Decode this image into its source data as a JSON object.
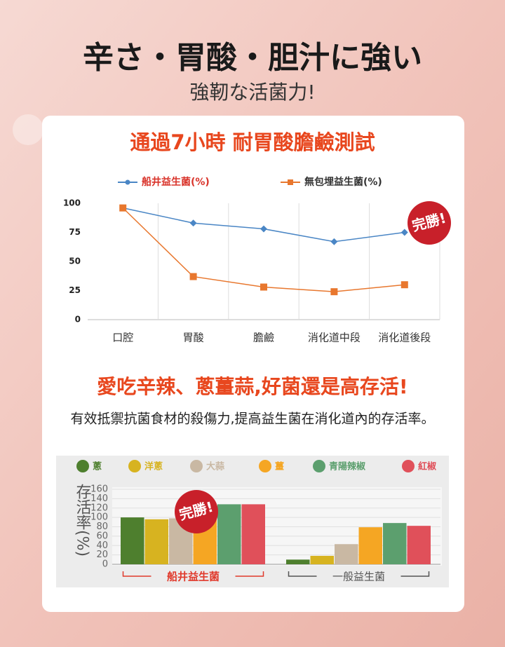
{
  "header": {
    "title": "辛さ・胃酸・胆汁に強い",
    "subtitle": "強靭な活菌力!"
  },
  "chart_data": [
    {
      "type": "line",
      "title": "通過7小時 耐胃酸膽鹼測試",
      "categories": [
        "口腔",
        "胃酸",
        "膽鹼",
        "消化道中段",
        "消化道後段"
      ],
      "series": [
        {
          "name": "船井益生菌(%)",
          "color": "#4a86c5",
          "values": [
            96,
            83,
            78,
            67,
            75
          ]
        },
        {
          "name": "無包埋益生菌(%)",
          "color": "#e8772e",
          "values": [
            96,
            37,
            28,
            24,
            30
          ]
        }
      ],
      "ylim": [
        0,
        100
      ],
      "yticks": [
        0,
        25,
        50,
        75,
        100
      ],
      "annotation": "完勝!"
    },
    {
      "type": "bar",
      "title": "愛吃辛辣、蔥薑蒜,好菌還是高存活!",
      "subtitle": "有效抵禦抗菌食材的殺傷力,提高益生菌在消化道內的存活率。",
      "y_label": "存活率(%)",
      "categories": [
        "船井益生菌",
        "一般益生菌"
      ],
      "series": [
        {
          "name": "蔥",
          "color": "#4e7f2e",
          "values": [
            100,
            10
          ]
        },
        {
          "name": "洋蔥",
          "color": "#d7b320",
          "values": [
            96,
            18
          ]
        },
        {
          "name": "大蒜",
          "color": "#c9b8a3",
          "values": [
            98,
            43
          ]
        },
        {
          "name": "薑",
          "color": "#f5a623",
          "values": [
            98,
            79
          ]
        },
        {
          "name": "青陽辣椒",
          "color": "#5c9f6e",
          "values": [
            128,
            88
          ]
        },
        {
          "name": "紅椒",
          "color": "#e0505a",
          "values": [
            128,
            82
          ]
        }
      ],
      "ylim": [
        0,
        160
      ],
      "yticks": [
        0,
        20,
        40,
        60,
        80,
        100,
        120,
        140,
        160
      ],
      "annotation": "完勝!"
    }
  ]
}
